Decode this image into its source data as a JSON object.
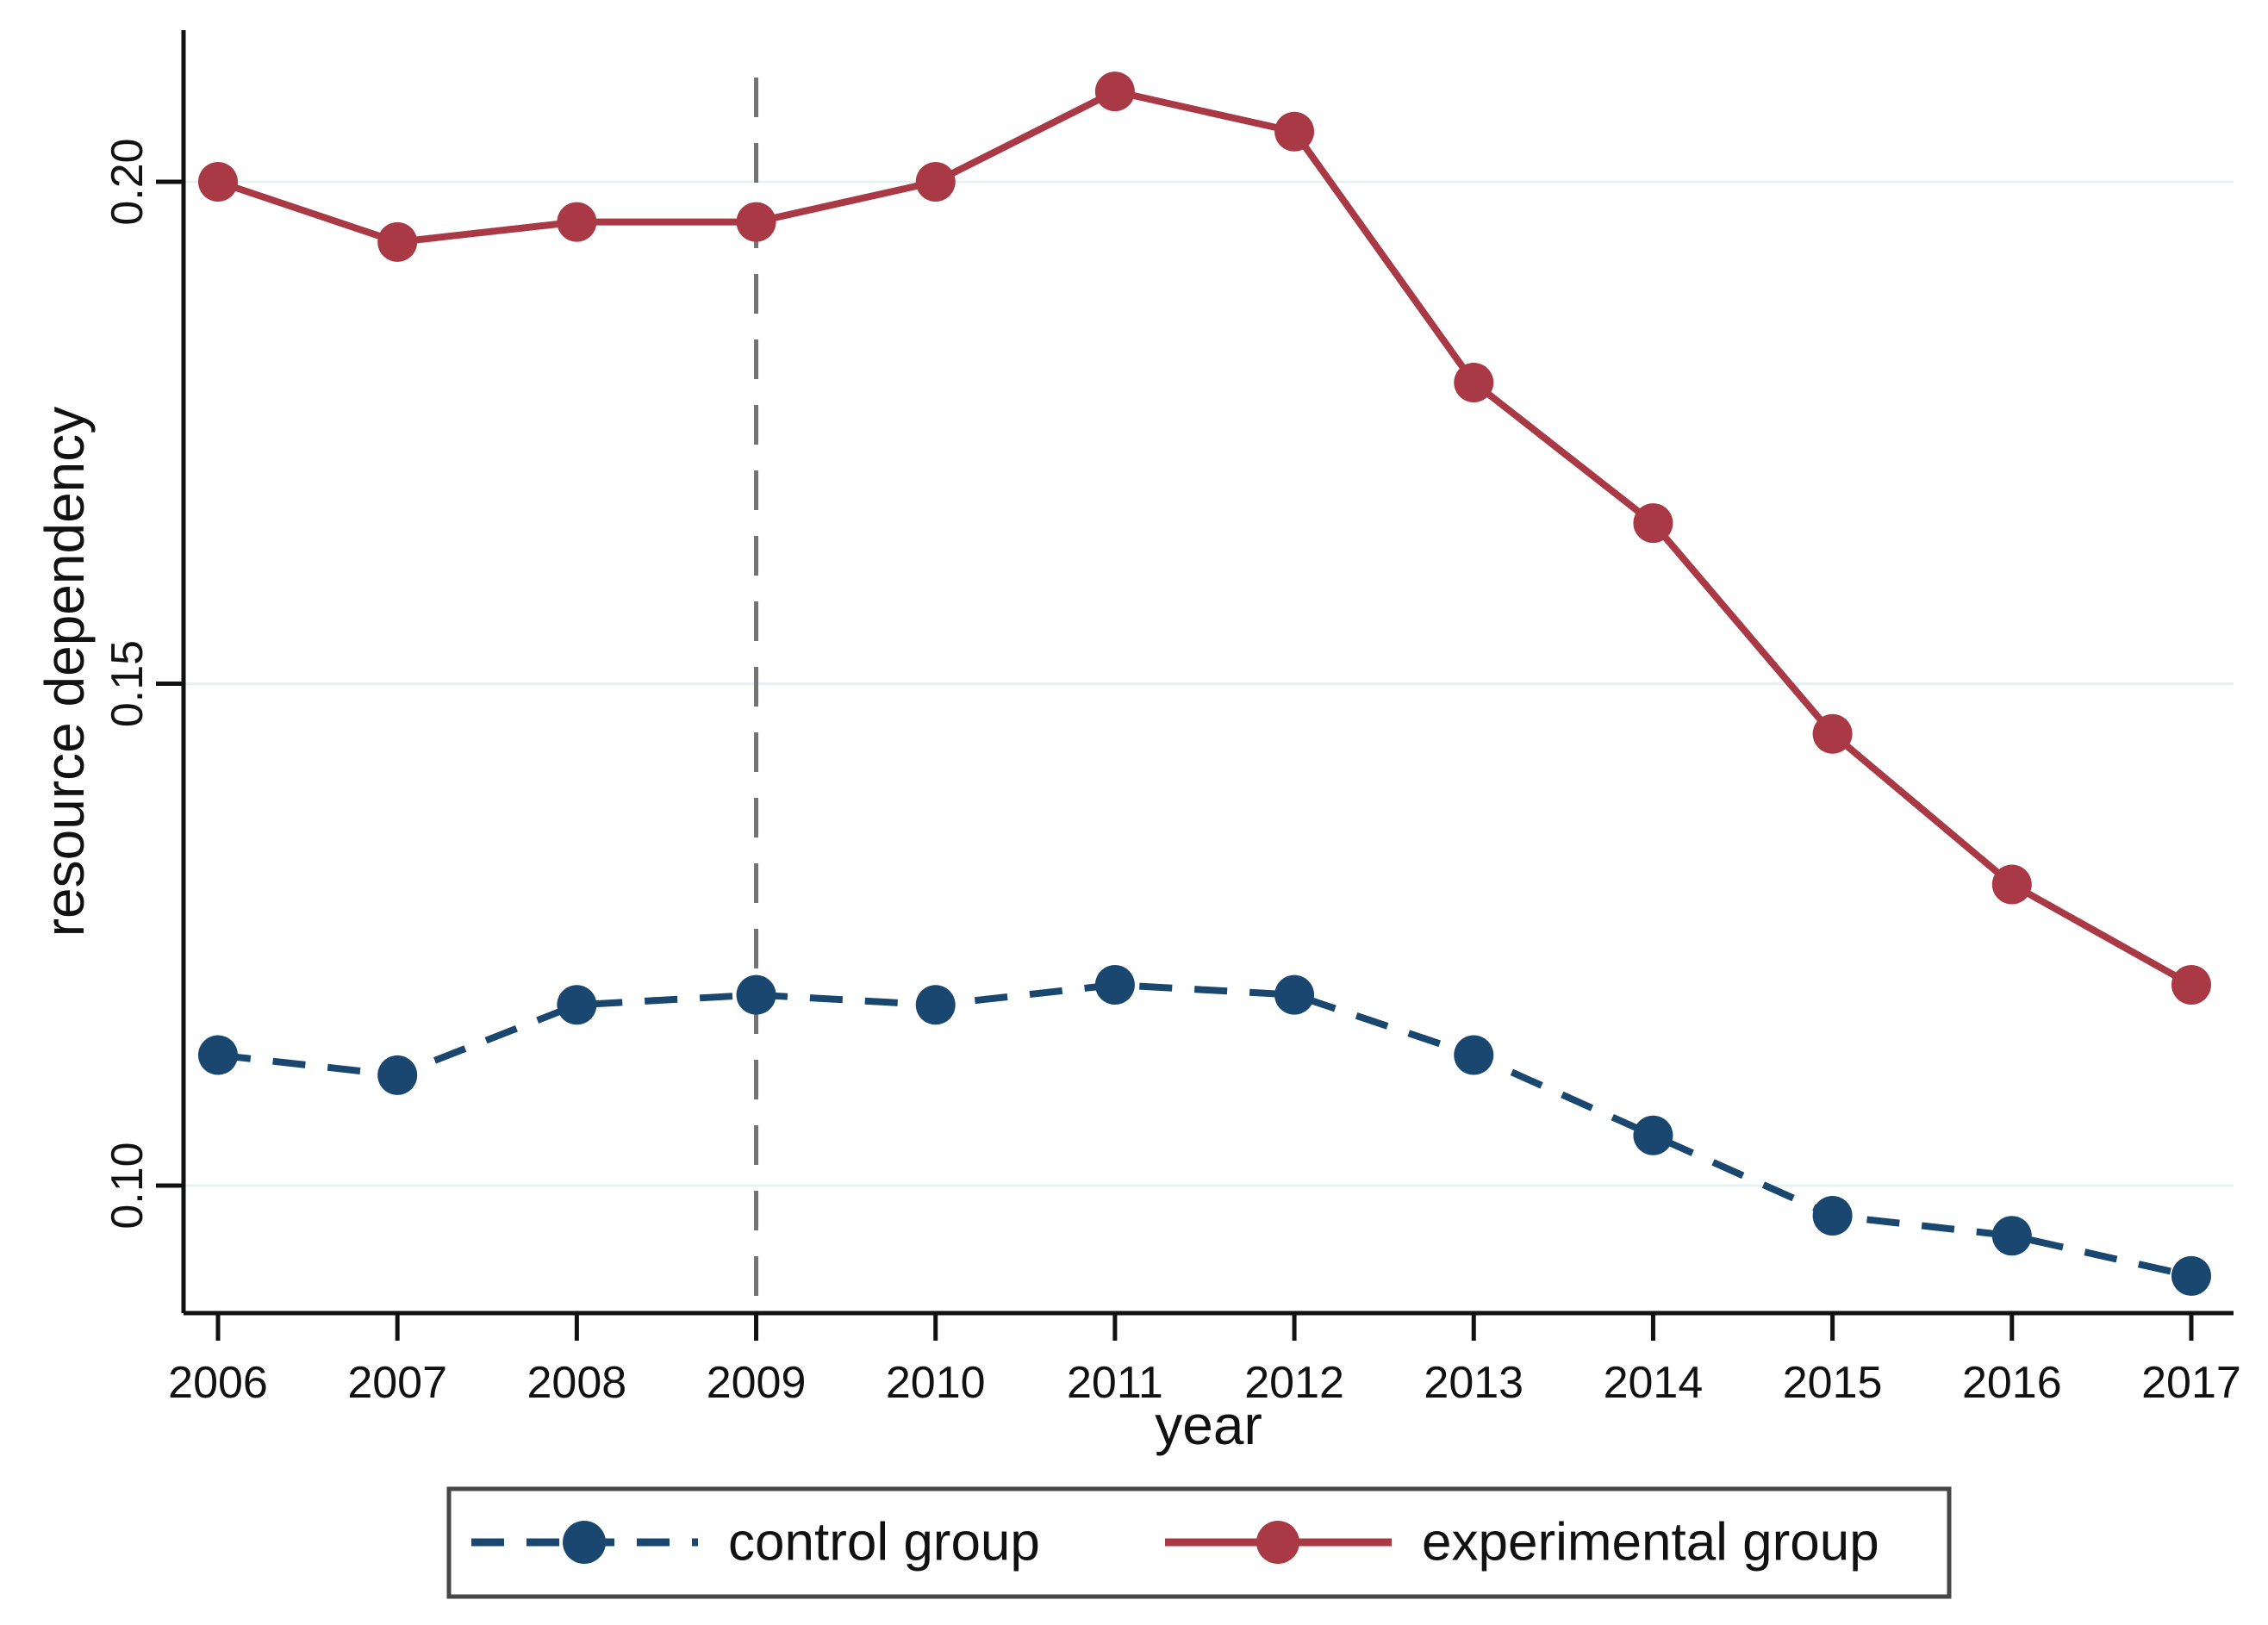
{
  "figure": {
    "background": "#ffffff",
    "text_color": "#111111"
  },
  "chart_data": {
    "type": "line",
    "title": "",
    "xlabel": "year",
    "ylabel": "resource dependency",
    "categories": [
      "2006",
      "2007",
      "2008",
      "2009",
      "2010",
      "2011",
      "2012",
      "2013",
      "2014",
      "2015",
      "2016",
      "2017"
    ],
    "series": [
      {
        "name": "control group",
        "color": "#1a476f",
        "line_style": "dashed",
        "marker": "circle",
        "values": [
          0.113,
          0.111,
          0.118,
          0.119,
          0.118,
          0.12,
          0.119,
          0.113,
          0.105,
          0.097,
          0.095,
          0.091
        ]
      },
      {
        "name": "experimental group",
        "color": "#a93944",
        "line_style": "solid",
        "marker": "circle",
        "values": [
          0.2,
          0.194,
          0.196,
          0.196,
          0.2,
          0.209,
          0.205,
          0.18,
          0.166,
          0.145,
          0.13,
          0.12
        ]
      }
    ],
    "yticks": {
      "values": [
        0.1,
        0.15,
        0.2
      ],
      "labels": [
        "0.10",
        "0.15",
        "0.20"
      ]
    },
    "ylim": [
      0.0873,
      0.2151
    ],
    "grid": "horizontal",
    "gridline_color": "#e7f0f2",
    "axis_color": "#111111",
    "reference_line": {
      "x": "2009",
      "style": "dashed",
      "color": "#737373"
    },
    "legend": {
      "position": "bottom",
      "border_color": "#464646",
      "background": "#ffffff",
      "entries": [
        "control group",
        "experimental group"
      ]
    }
  }
}
